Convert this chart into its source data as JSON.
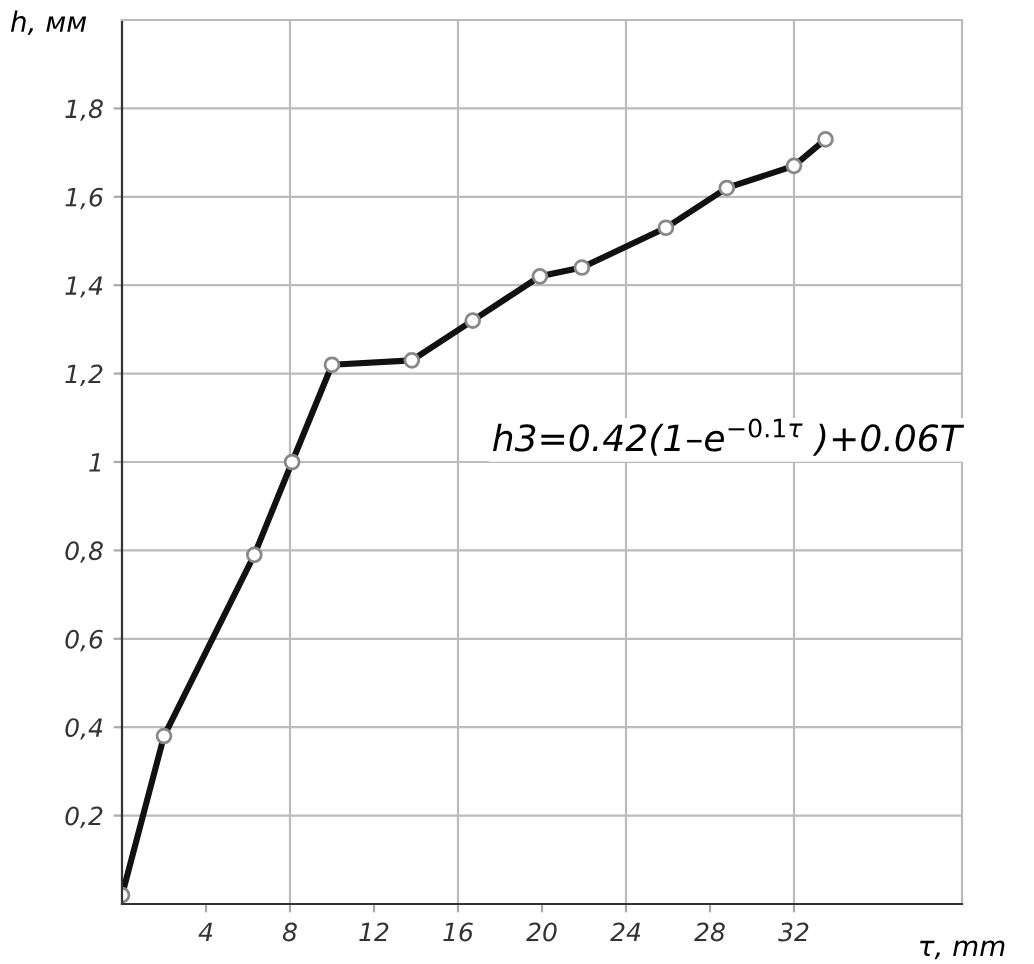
{
  "chart_data": {
    "type": "line",
    "xlabel": "τ, mm",
    "ylabel": "h, мм",
    "annotations": [
      "h3=0.42(1–e$^{−0.1τ}$ )+0.06T"
    ],
    "series": [
      {
        "color": "#111111",
        "x": [
          0,
          2,
          6.3,
          8.1,
          10,
          13.8,
          16.7,
          19.9,
          21.9,
          25.9,
          28.8,
          32,
          33.5
        ],
        "values": [
          0.02,
          0.38,
          0.79,
          1.0,
          1.22,
          1.23,
          1.32,
          1.42,
          1.44,
          1.53,
          1.62,
          1.67,
          1.73
        ]
      }
    ],
    "marker": "circle",
    "line_style": "solid",
    "xlim": [
      0,
      40
    ],
    "ylim": [
      0,
      2.0
    ],
    "xticks": [
      4,
      8,
      12,
      16,
      20,
      24,
      28,
      32
    ],
    "yticks": [
      {
        "value": 0.2,
        "label": "0,2"
      },
      {
        "value": 0.4,
        "label": "0,4"
      },
      {
        "value": 0.6,
        "label": "0,6"
      },
      {
        "value": 0.8,
        "label": "0,8"
      },
      {
        "value": 1.0,
        "label": "1"
      },
      {
        "value": 1.2,
        "label": "1,2"
      },
      {
        "value": 1.4,
        "label": "1,4"
      },
      {
        "value": 1.6,
        "label": "1,6"
      },
      {
        "value": 1.8,
        "label": "1,8"
      }
    ],
    "grid": true
  }
}
